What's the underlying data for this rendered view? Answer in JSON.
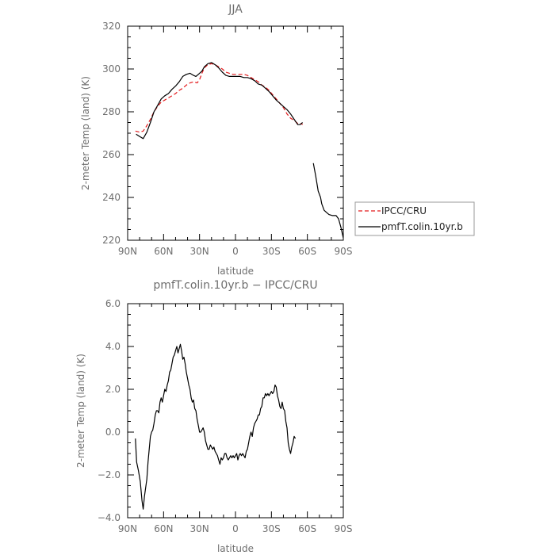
{
  "chart_data": [
    {
      "type": "line",
      "title": "JJA",
      "xlabel": "latitude",
      "ylabel": "2-meter Temp (land) (K)",
      "x_ticks": [
        "90N",
        "60N",
        "30N",
        "0",
        "30S",
        "60S",
        "90S"
      ],
      "y_ticks": [
        "220",
        "240",
        "260",
        "280",
        "300",
        "320"
      ],
      "xlim": [
        90,
        -90
      ],
      "ylim": [
        220,
        320
      ],
      "grid": false,
      "legend_position": "outside right",
      "series": [
        {
          "name": "IPCC/CRU",
          "color": "#e31a1c",
          "style": "dashed",
          "segments": [
            [
              [
                83.5,
                271
              ],
              [
                80,
                270.5
              ],
              [
                77,
                271
              ],
              [
                74,
                273.5
              ],
              [
                71,
                276.5
              ],
              [
                68,
                280
              ],
              [
                65,
                282.5
              ],
              [
                62,
                284.5
              ],
              [
                59,
                285.5
              ],
              [
                56,
                286.5
              ],
              [
                53,
                287.5
              ],
              [
                50,
                288.5
              ],
              [
                47,
                290
              ],
              [
                44,
                291
              ],
              [
                41,
                292.5
              ],
              [
                38,
                293.5
              ],
              [
                35,
                294
              ],
              [
                32,
                293.5
              ],
              [
                30,
                295
              ],
              [
                28,
                298
              ],
              [
                26,
                300.5
              ],
              [
                23,
                302
              ],
              [
                20,
                302.5
              ],
              [
                17,
                302
              ],
              [
                14,
                301
              ],
              [
                11,
                300
              ],
              [
                8,
                298.5
              ],
              [
                5,
                298
              ],
              [
                2,
                297.5
              ],
              [
                -1,
                297.5
              ],
              [
                -4,
                297.5
              ],
              [
                -7,
                297.5
              ],
              [
                -10,
                297
              ],
              [
                -13,
                296
              ],
              [
                -16,
                295
              ],
              [
                -19,
                294
              ],
              [
                -22,
                292.5
              ],
              [
                -25,
                291.5
              ],
              [
                -28,
                290
              ],
              [
                -31,
                288
              ],
              [
                -34,
                286
              ],
              [
                -37,
                284
              ],
              [
                -40,
                282
              ],
              [
                -43,
                279
              ],
              [
                -46,
                277
              ],
              [
                -49,
                276
              ],
              [
                -52,
                274.5
              ],
              [
                -55,
                274.5
              ],
              [
                -56,
                274
              ]
            ]
          ]
        },
        {
          "name": "pmfT.colin.10yr.b",
          "color": "#000000",
          "style": "solid",
          "segments": [
            [
              [
                83,
                269.5
              ],
              [
                80,
                268.5
              ],
              [
                77,
                267.5
              ],
              [
                74,
                270.5
              ],
              [
                71,
                275
              ],
              [
                68,
                280
              ],
              [
                65,
                283
              ],
              [
                62,
                286
              ],
              [
                59,
                287.5
              ],
              [
                56,
                288.5
              ],
              [
                53,
                290.5
              ],
              [
                50,
                292
              ],
              [
                47,
                294
              ],
              [
                44,
                296.5
              ],
              [
                41,
                297.5
              ],
              [
                38,
                298
              ],
              [
                35,
                297
              ],
              [
                33,
                296.5
              ],
              [
                30,
                298
              ],
              [
                28,
                299
              ],
              [
                26,
                301
              ],
              [
                23,
                302.5
              ],
              [
                20,
                303
              ],
              [
                17,
                302
              ],
              [
                14,
                300.5
              ],
              [
                11,
                298.5
              ],
              [
                8,
                297
              ],
              [
                5,
                296.5
              ],
              [
                2,
                296.5
              ],
              [
                -1,
                296.5
              ],
              [
                -4,
                296.5
              ],
              [
                -7,
                296
              ],
              [
                -10,
                296
              ],
              [
                -13,
                295.5
              ],
              [
                -16,
                294.5
              ],
              [
                -19,
                293
              ],
              [
                -22,
                292.5
              ],
              [
                -25,
                291
              ],
              [
                -28,
                289.5
              ],
              [
                -31,
                287.5
              ],
              [
                -34,
                285.5
              ],
              [
                -37,
                284
              ],
              [
                -40,
                282.5
              ],
              [
                -43,
                281
              ],
              [
                -46,
                279
              ],
              [
                -49,
                276.5
              ],
              [
                -52,
                274
              ],
              [
                -54,
                274
              ],
              [
                -56,
                275
              ]
            ],
            [
              [
                -65,
                256
              ],
              [
                -67,
                250
              ],
              [
                -69,
                243
              ],
              [
                -71,
                240
              ],
              [
                -72,
                237
              ],
              [
                -74,
                234
              ],
              [
                -76,
                233
              ],
              [
                -78,
                232
              ],
              [
                -81,
                231.5
              ],
              [
                -84,
                231.5
              ],
              [
                -86,
                230
              ],
              [
                -88,
                226
              ],
              [
                -90,
                221
              ]
            ]
          ]
        }
      ]
    },
    {
      "type": "line",
      "title": "pmfT.colin.10yr.b − IPCC/CRU",
      "xlabel": "latitude",
      "ylabel": "2-meter Temp (land) (K)",
      "x_ticks": [
        "90N",
        "60N",
        "30N",
        "0",
        "30S",
        "60S",
        "90S"
      ],
      "y_ticks": [
        "−4.0",
        "−2.0",
        "0.0",
        "2.0",
        "4.0",
        "6.0"
      ],
      "xlim": [
        90,
        -90
      ],
      "ylim": [
        -4,
        6
      ],
      "grid": false,
      "series": [
        {
          "color": "#000000",
          "style": "solid",
          "segments": [
            [
              [
                83.5,
                -0.3
              ],
              [
                82.5,
                -1.4
              ],
              [
                81,
                -1.8
              ],
              [
                79.5,
                -2.3
              ],
              [
                78,
                -3.2
              ],
              [
                77,
                -3.6
              ],
              [
                76,
                -3.0
              ],
              [
                75,
                -2.6
              ],
              [
                74,
                -2.2
              ],
              [
                73,
                -1.4
              ],
              [
                72,
                -0.8
              ],
              [
                71,
                -0.2
              ],
              [
                70,
                0.0
              ],
              [
                69,
                0.1
              ],
              [
                68,
                0.4
              ],
              [
                67,
                0.8
              ],
              [
                66,
                1.0
              ],
              [
                65,
                1.0
              ],
              [
                64,
                0.9
              ],
              [
                63,
                1.4
              ],
              [
                62,
                1.6
              ],
              [
                61,
                1.4
              ],
              [
                60,
                1.7
              ],
              [
                59,
                2.0
              ],
              [
                58,
                1.9
              ],
              [
                57,
                2.2
              ],
              [
                56,
                2.4
              ],
              [
                55,
                2.8
              ],
              [
                54,
                2.9
              ],
              [
                53,
                3.2
              ],
              [
                52,
                3.5
              ],
              [
                51,
                3.6
              ],
              [
                50,
                3.8
              ],
              [
                49,
                4.0
              ],
              [
                48,
                3.7
              ],
              [
                47,
                3.9
              ],
              [
                46,
                4.1
              ],
              [
                45,
                3.8
              ],
              [
                44,
                3.4
              ],
              [
                43,
                3.5
              ],
              [
                42,
                3.2
              ],
              [
                41,
                2.8
              ],
              [
                40,
                2.5
              ],
              [
                39,
                2.2
              ],
              [
                38,
                2.0
              ],
              [
                37,
                1.6
              ],
              [
                36,
                1.4
              ],
              [
                35,
                1.5
              ],
              [
                34,
                1.1
              ],
              [
                33,
                1.0
              ],
              [
                32,
                0.6
              ],
              [
                31,
                0.3
              ],
              [
                30,
                0.0
              ],
              [
                29,
                0.0
              ],
              [
                28,
                0.1
              ],
              [
                27,
                0.2
              ],
              [
                26,
                0.0
              ],
              [
                25,
                -0.4
              ],
              [
                24,
                -0.6
              ],
              [
                23,
                -0.8
              ],
              [
                22,
                -0.8
              ],
              [
                21,
                -0.6
              ],
              [
                20,
                -0.7
              ],
              [
                19,
                -0.8
              ],
              [
                18,
                -0.7
              ],
              [
                17,
                -0.9
              ],
              [
                16,
                -1.0
              ],
              [
                15,
                -1.1
              ],
              [
                14,
                -1.3
              ],
              [
                13,
                -1.5
              ],
              [
                12,
                -1.2
              ],
              [
                11,
                -1.3
              ],
              [
                10,
                -1.2
              ],
              [
                9,
                -1.0
              ],
              [
                8,
                -1.0
              ],
              [
                7,
                -1.2
              ],
              [
                6,
                -1.3
              ],
              [
                5,
                -1.2
              ],
              [
                4,
                -1.1
              ],
              [
                3,
                -1.2
              ],
              [
                2,
                -1.1
              ],
              [
                1,
                -1.2
              ],
              [
                0,
                -1.1
              ],
              [
                -1,
                -1.0
              ],
              [
                -2,
                -1.3
              ],
              [
                -3,
                -1.1
              ],
              [
                -4,
                -1.0
              ],
              [
                -5,
                -1.1
              ],
              [
                -6,
                -1.0
              ],
              [
                -7,
                -1.1
              ],
              [
                -8,
                -1.2
              ],
              [
                -9,
                -0.9
              ],
              [
                -10,
                -0.8
              ],
              [
                -11,
                -0.5
              ],
              [
                -12,
                -0.2
              ],
              [
                -13,
                0.0
              ],
              [
                -14,
                -0.2
              ],
              [
                -15,
                0.2
              ],
              [
                -16,
                0.4
              ],
              [
                -17,
                0.5
              ],
              [
                -18,
                0.6
              ],
              [
                -19,
                0.8
              ],
              [
                -20,
                0.8
              ],
              [
                -21,
                1.1
              ],
              [
                -22,
                1.2
              ],
              [
                -23,
                1.6
              ],
              [
                -24,
                1.6
              ],
              [
                -25,
                1.8
              ],
              [
                -26,
                1.7
              ],
              [
                -27,
                1.8
              ],
              [
                -28,
                1.7
              ],
              [
                -29,
                1.8
              ],
              [
                -30,
                1.9
              ],
              [
                -31,
                1.8
              ],
              [
                -32,
                1.9
              ],
              [
                -33,
                2.2
              ],
              [
                -34,
                2.1
              ],
              [
                -35,
                1.7
              ],
              [
                -36,
                1.5
              ],
              [
                -37,
                1.2
              ],
              [
                -38,
                1.1
              ],
              [
                -39,
                1.4
              ],
              [
                -40,
                1.1
              ],
              [
                -41,
                1.0
              ],
              [
                -42,
                0.5
              ],
              [
                -43,
                0.2
              ],
              [
                -44,
                -0.5
              ],
              [
                -45,
                -0.8
              ],
              [
                -46,
                -1.0
              ],
              [
                -47,
                -0.7
              ],
              [
                -48,
                -0.5
              ],
              [
                -49,
                -0.2
              ],
              [
                -50,
                -0.3
              ]
            ]
          ]
        }
      ]
    }
  ],
  "legend": {
    "items": [
      {
        "label": "IPCC/CRU",
        "color": "#e31a1c",
        "style": "dashed"
      },
      {
        "label": "pmfT.colin.10yr.b",
        "color": "#000000",
        "style": "solid"
      }
    ]
  }
}
